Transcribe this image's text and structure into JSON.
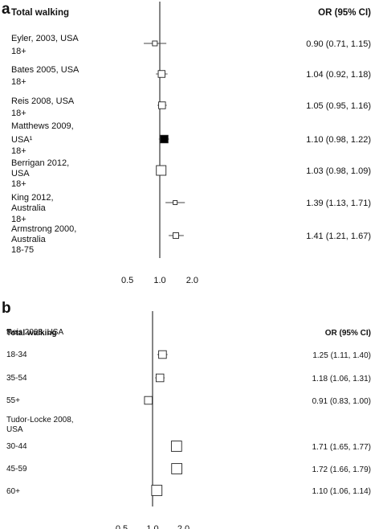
{
  "chart_data": [
    {
      "type": "forest",
      "panel_label": "a",
      "header_left": "Total walking",
      "header_right": "OR (95% CI)",
      "x_scale": "log",
      "xticks": [
        "0.5",
        "1.0",
        "2.0"
      ],
      "reference_line": 1.0,
      "studies": [
        {
          "label": [
            "Eyler, 2003, USA",
            "18+"
          ],
          "or": 0.9,
          "ci": [
            0.71,
            1.15
          ],
          "text": "0.90 (0.71, 1.15)",
          "marker": "open",
          "weight": 0.3
        },
        {
          "label": [
            "Bates 2005, USA",
            "18+"
          ],
          "or": 1.04,
          "ci": [
            0.92,
            1.18
          ],
          "text": "1.04 (0.92, 1.18)",
          "marker": "open",
          "weight": 0.55
        },
        {
          "label": [
            "Reis 2008, USA",
            "18+"
          ],
          "or": 1.05,
          "ci": [
            0.95,
            1.16
          ],
          "text": "1.05 (0.95, 1.16)",
          "marker": "open",
          "weight": 0.55
        },
        {
          "label": [
            "Matthews 2009,",
            "USA¹",
            "18+"
          ],
          "or": 1.1,
          "ci": [
            0.98,
            1.22
          ],
          "text": "1.10 (0.98, 1.22)",
          "marker": "filled",
          "weight": 0.65
        },
        {
          "label": [
            "Berrigan 2012,",
            "USA",
            "18+"
          ],
          "or": 1.03,
          "ci": [
            0.98,
            1.09
          ],
          "text": "1.03 (0.98, 1.09)",
          "marker": "open",
          "weight": 0.9
        },
        {
          "label": [
            "King 2012,",
            "Australia",
            "18+"
          ],
          "or": 1.39,
          "ci": [
            1.13,
            1.71
          ],
          "text": "1.39 (1.13, 1.71)",
          "marker": "open",
          "weight": 0.2
        },
        {
          "label": [
            "Armstrong 2000,",
            "Australia",
            "18-75"
          ],
          "or": 1.41,
          "ci": [
            1.21,
            1.67
          ],
          "text": "1.41 (1.21, 1.67)",
          "marker": "open",
          "weight": 0.4
        }
      ]
    },
    {
      "type": "forest",
      "panel_label": "b",
      "header_left": "Total walking",
      "header_right": "OR (95% CI)",
      "x_scale": "log",
      "xticks": [
        "0.5",
        "1.0",
        "2.0"
      ],
      "reference_line": 1.0,
      "groups": [
        {
          "label": [
            "Reis 2008, USA"
          ]
        },
        {
          "label": [
            "Tudor-Locke 2008,",
            "USA"
          ]
        }
      ],
      "studies": [
        {
          "label": [
            "18-34"
          ],
          "group": 0,
          "or": 1.25,
          "ci": [
            1.11,
            1.4
          ],
          "text": "1.25 (1.11, 1.40)",
          "marker": "open",
          "weight": 0.45
        },
        {
          "label": [
            "35-54"
          ],
          "group": 0,
          "or": 1.18,
          "ci": [
            1.06,
            1.31
          ],
          "text": "1.18 (1.06, 1.31)",
          "marker": "open",
          "weight": 0.45
        },
        {
          "label": [
            "55+"
          ],
          "group": 0,
          "or": 0.91,
          "ci": [
            0.83,
            1.0
          ],
          "text": "0.91 (0.83, 1.00)",
          "marker": "open",
          "weight": 0.45
        },
        {
          "label": [
            "30-44"
          ],
          "group": 1,
          "or": 1.71,
          "ci": [
            1.65,
            1.77
          ],
          "text": "1.71 (1.65, 1.77)",
          "marker": "open",
          "weight": 0.85
        },
        {
          "label": [
            "45-59"
          ],
          "group": 1,
          "or": 1.72,
          "ci": [
            1.66,
            1.79
          ],
          "text": "1.72 (1.66, 1.79)",
          "marker": "open",
          "weight": 0.85
        },
        {
          "label": [
            "60+"
          ],
          "group": 1,
          "or": 1.1,
          "ci": [
            1.06,
            1.14
          ],
          "text": "1.10 (1.06, 1.14)",
          "marker": "open",
          "weight": 0.85
        }
      ]
    }
  ]
}
